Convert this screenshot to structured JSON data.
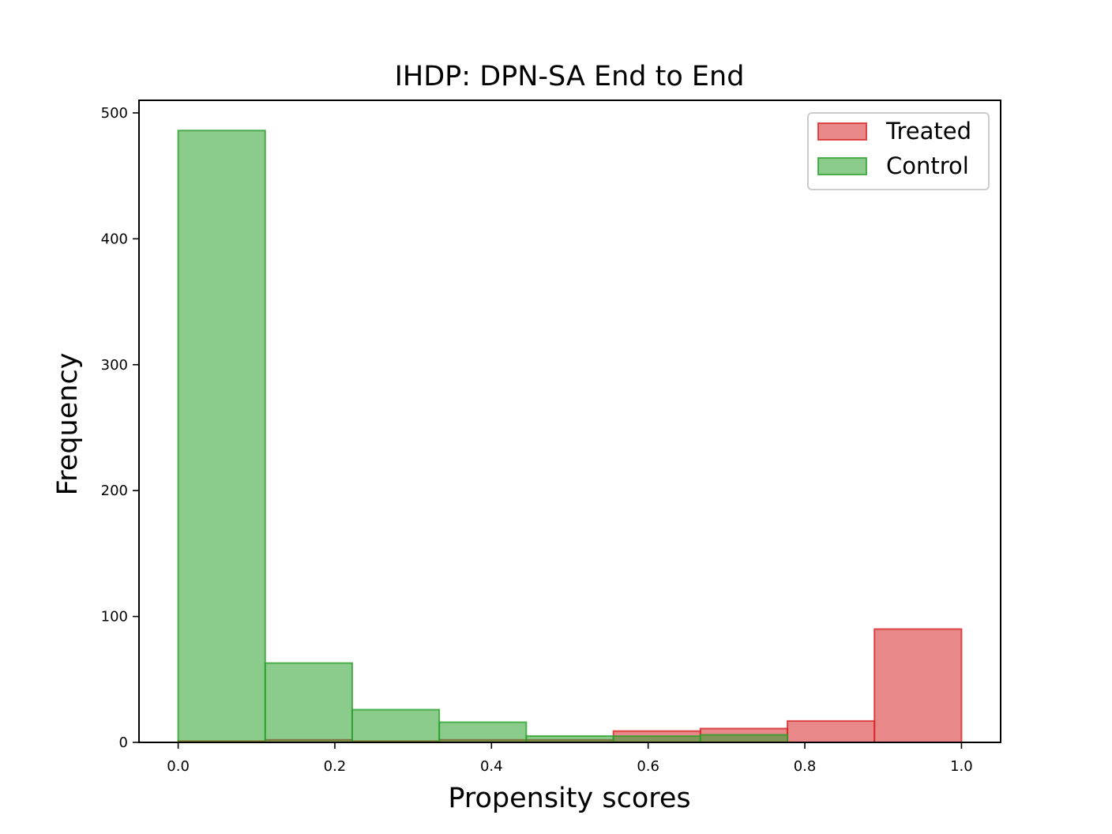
{
  "chart_data": {
    "type": "bar",
    "title": "IHDP: DPN-SA End to End",
    "xlabel": "Propensity scores",
    "ylabel": "Frequency",
    "xlim": [
      -0.05,
      1.05
    ],
    "ylim": [
      0,
      510
    ],
    "xticks": [
      "0.0",
      "0.2",
      "0.4",
      "0.6",
      "0.8",
      "1.0"
    ],
    "yticks": [
      "0",
      "100",
      "200",
      "300",
      "400",
      "500"
    ],
    "bin_edges": [
      0.0,
      0.1111,
      0.2222,
      0.3333,
      0.4444,
      0.5556,
      0.6667,
      0.7778,
      0.8889,
      1.0
    ],
    "grid": false,
    "legend_position": "top-right",
    "series": [
      {
        "name": "Treated",
        "color": "#d62728",
        "values": [
          1,
          2,
          1,
          2,
          2,
          9,
          11,
          17,
          90
        ]
      },
      {
        "name": "Control",
        "color": "#2ca02c",
        "values": [
          486,
          63,
          26,
          16,
          5,
          5,
          6,
          0,
          0
        ]
      }
    ]
  }
}
